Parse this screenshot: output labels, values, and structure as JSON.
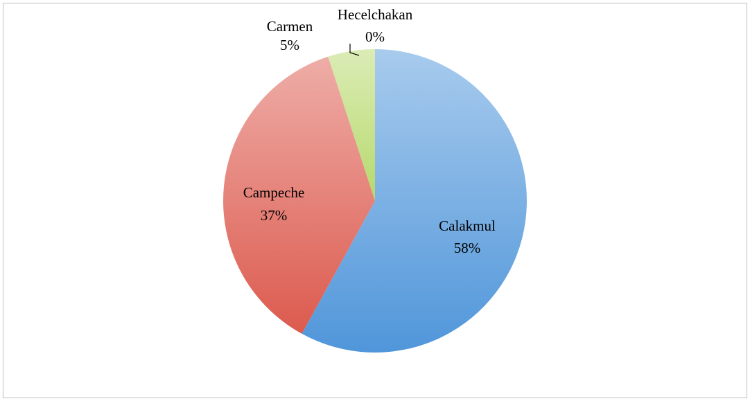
{
  "chart_data": {
    "type": "pie",
    "categories": [
      "Calakmul",
      "Campeche",
      "Carmen",
      "Hecelchakan"
    ],
    "values": [
      58,
      37,
      5,
      0
    ],
    "value_labels": [
      "58%",
      "37%",
      "5%",
      "0%"
    ],
    "colors": [
      "#5096da",
      "#dc5a4e",
      "#b6d96c",
      "#8064a2"
    ]
  }
}
